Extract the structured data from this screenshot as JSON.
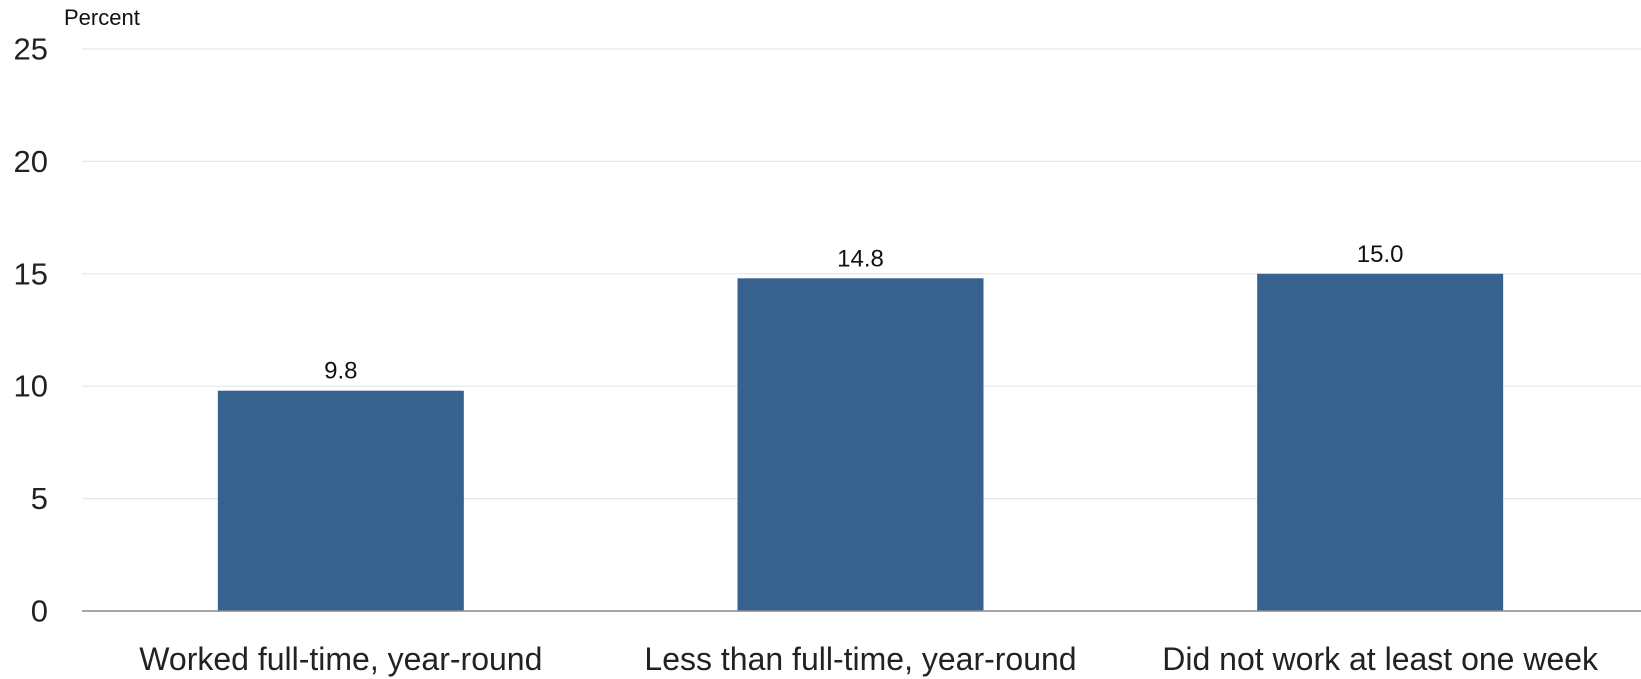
{
  "chart_data": {
    "type": "bar",
    "ylabel": "Percent",
    "xlabel": "",
    "categories": [
      "Worked full-time, year-round",
      "Less than full-time, year-round",
      "Did not work at least one week"
    ],
    "values": [
      9.8,
      14.8,
      15.0
    ],
    "data_labels": [
      "9.8",
      "14.8",
      "15.0"
    ],
    "ylim": [
      0,
      25
    ],
    "yticks": [
      0,
      5,
      10,
      15,
      20,
      25
    ],
    "ytick_labels": [
      "0",
      "5",
      "10",
      "15",
      "20",
      "25"
    ],
    "grid": true,
    "legend": "none",
    "colors": {
      "bar": "#37618f",
      "grid": "#e6e6e6",
      "axis": "#888888"
    }
  }
}
